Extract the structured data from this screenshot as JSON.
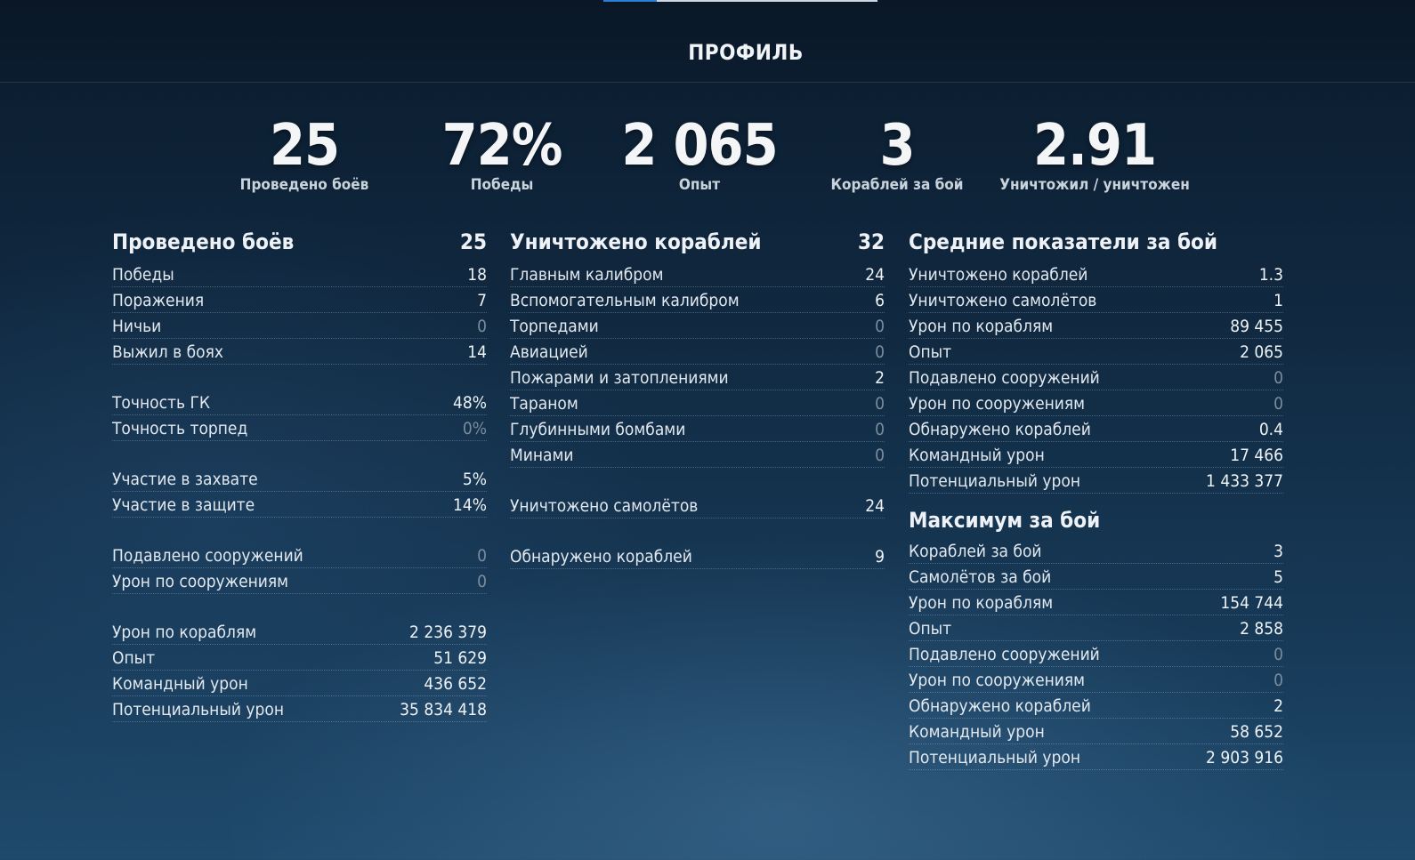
{
  "page": {
    "title": "ПРОФИЛЬ"
  },
  "summary": [
    {
      "value": "25",
      "label": "Проведено боёв"
    },
    {
      "value": "72%",
      "label": "Победы"
    },
    {
      "value": "2 065",
      "label": "Опыт"
    },
    {
      "value": "3",
      "label": "Кораблей за бой"
    },
    {
      "value": "2.91",
      "label": "Уничтожил / уничтожен"
    }
  ],
  "battles": {
    "title": "Проведено боёв",
    "total": "25",
    "groups": [
      [
        {
          "label": "Победы",
          "value": "18"
        },
        {
          "label": "Поражения",
          "value": "7"
        },
        {
          "label": "Ничьи",
          "value": "0"
        },
        {
          "label": "Выжил в боях",
          "value": "14"
        }
      ],
      [
        {
          "label": "Точность ГК",
          "value": "48%"
        },
        {
          "label": "Точность торпед",
          "value": "0%"
        }
      ],
      [
        {
          "label": "Участие в захвате",
          "value": "5%"
        },
        {
          "label": "Участие в защите",
          "value": "14%"
        }
      ],
      [
        {
          "label": "Подавлено сооружений",
          "value": "0"
        },
        {
          "label": "Урон по сооружениям",
          "value": "0"
        }
      ],
      [
        {
          "label": "Урон по кораблям",
          "value": "2 236 379"
        },
        {
          "label": "Опыт",
          "value": "51 629"
        },
        {
          "label": "Командный урон",
          "value": "436 652"
        },
        {
          "label": "Потенциальный урон",
          "value": "35 834 418"
        }
      ]
    ]
  },
  "destroyed": {
    "title": "Уничтожено кораблей",
    "total": "32",
    "groups": [
      [
        {
          "label": "Главным калибром",
          "value": "24"
        },
        {
          "label": "Вспомогательным калибром",
          "value": "6"
        },
        {
          "label": "Торпедами",
          "value": "0"
        },
        {
          "label": "Авиацией",
          "value": "0"
        },
        {
          "label": "Пожарами и затоплениями",
          "value": "2"
        },
        {
          "label": "Тараном",
          "value": "0"
        },
        {
          "label": "Глубинными бомбами",
          "value": "0"
        },
        {
          "label": "Минами",
          "value": "0"
        }
      ],
      [
        {
          "label": "Уничтожено самолётов",
          "value": "24"
        }
      ],
      [
        {
          "label": "Обнаружено кораблей",
          "value": "9"
        }
      ]
    ]
  },
  "averages": {
    "title": "Средние показатели за бой",
    "rows": [
      {
        "label": "Уничтожено кораблей",
        "value": "1.3"
      },
      {
        "label": "Уничтожено самолётов",
        "value": "1"
      },
      {
        "label": "Урон по кораблям",
        "value": "89 455"
      },
      {
        "label": "Опыт",
        "value": "2 065"
      },
      {
        "label": "Подавлено сооружений",
        "value": "0"
      },
      {
        "label": "Урон по сооружениям",
        "value": "0"
      },
      {
        "label": "Обнаружено кораблей",
        "value": "0.4"
      },
      {
        "label": "Командный урон",
        "value": "17 466"
      },
      {
        "label": "Потенциальный урон",
        "value": "1 433 377"
      }
    ]
  },
  "maximum": {
    "title": "Максимум за бой",
    "rows": [
      {
        "label": "Кораблей за бой",
        "value": "3"
      },
      {
        "label": "Самолётов за бой",
        "value": "5"
      },
      {
        "label": "Урон по кораблям",
        "value": "154 744"
      },
      {
        "label": "Опыт",
        "value": "2 858"
      },
      {
        "label": "Подавлено сооружений",
        "value": "0"
      },
      {
        "label": "Урон по сооружениям",
        "value": "0"
      },
      {
        "label": "Обнаружено кораблей",
        "value": "2"
      },
      {
        "label": "Командный урон",
        "value": "58 652"
      },
      {
        "label": "Потенциальный урон",
        "value": "2 903 916"
      }
    ]
  }
}
